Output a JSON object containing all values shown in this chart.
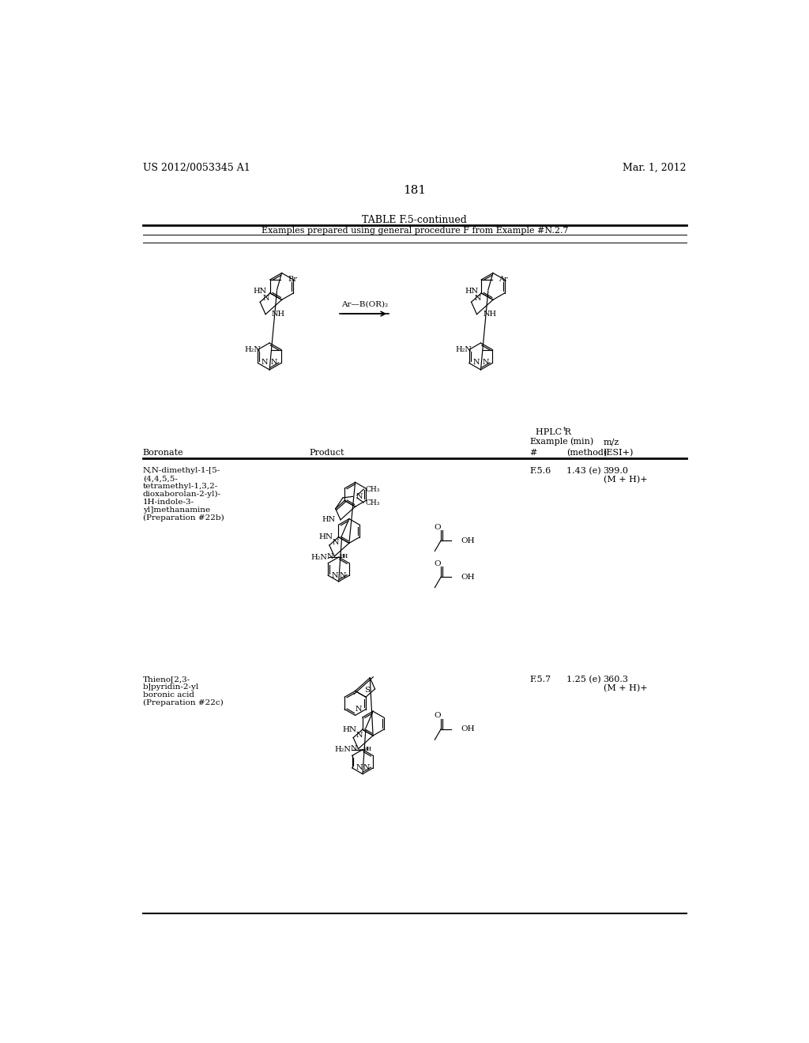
{
  "page_header_left": "US 2012/0053345 A1",
  "page_header_right": "Mar. 1, 2012",
  "page_number": "181",
  "table_title": "TABLE F.5-continued",
  "table_subtitle": "Examples prepared using general procedure F from Example #N.2.7",
  "col_boronate": "Boronate",
  "col_product": "Product",
  "hplc_rt": "HPLC R",
  "hplc_t": "t",
  "hplc_example": "Example",
  "hplc_min": "(min)",
  "hplc_mz": "m/z",
  "hplc_hash": "#",
  "hplc_method": "(method)",
  "hplc_esi": "(ESI+)",
  "row1_boronate": [
    "N,N-dimethyl-1-[5-",
    "(4,4,5,5-",
    "tetramethyl-1,3,2-",
    "dioxaborolan-2-yl)-",
    "1H-indole-3-",
    "yl]methanamine",
    "(Preparation #22b)"
  ],
  "row1_example": "F.5.6",
  "row1_min": "1.43 (e)",
  "row1_mz": "399.0",
  "row1_mz2": "(M + H)+",
  "row2_boronate": [
    "Thieno[2,3-",
    "b]pyridin-2-yl",
    "boronic acid",
    "(Preparation #22c)"
  ],
  "row2_example": "F.5.7",
  "row2_min": "1.25 (e)",
  "row2_mz": "360.3",
  "row2_mz2": "(M + H)+",
  "bg_color": "#ffffff",
  "text_color": "#000000"
}
